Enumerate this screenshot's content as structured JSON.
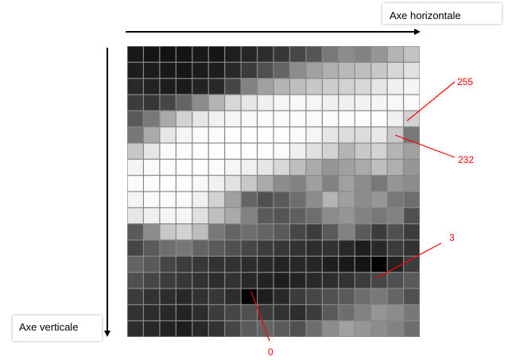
{
  "axes": {
    "horizontal_label": "Axe horizontale",
    "vertical_label": "Axe verticale"
  },
  "annotations": [
    {
      "text": "255"
    },
    {
      "text": "232"
    },
    {
      "text": "3"
    },
    {
      "text": "0"
    }
  ],
  "colors": {
    "annotation": "#ff0000",
    "axis": "#000000"
  },
  "pixel_grid": {
    "rows": 18,
    "cols": 18,
    "values": [
      [
        25,
        20,
        18,
        20,
        25,
        22,
        30,
        38,
        45,
        55,
        70,
        85,
        120,
        140,
        130,
        150,
        180,
        195
      ],
      [
        30,
        28,
        25,
        22,
        28,
        30,
        40,
        60,
        80,
        100,
        140,
        160,
        175,
        185,
        190,
        200,
        215,
        225
      ],
      [
        40,
        35,
        30,
        28,
        35,
        40,
        70,
        130,
        160,
        180,
        190,
        200,
        205,
        210,
        215,
        230,
        240,
        245
      ],
      [
        60,
        55,
        70,
        100,
        140,
        180,
        215,
        230,
        240,
        245,
        248,
        245,
        240,
        240,
        242,
        245,
        248,
        250
      ],
      [
        90,
        120,
        170,
        210,
        230,
        240,
        245,
        248,
        250,
        252,
        252,
        250,
        250,
        252,
        252,
        255,
        240,
        210
      ],
      [
        120,
        170,
        230,
        245,
        250,
        252,
        253,
        254,
        254,
        253,
        250,
        245,
        230,
        220,
        220,
        232,
        200,
        120
      ],
      [
        200,
        230,
        250,
        252,
        254,
        254,
        254,
        254,
        252,
        250,
        240,
        225,
        210,
        180,
        200,
        210,
        180,
        160
      ],
      [
        245,
        250,
        252,
        254,
        254,
        250,
        245,
        240,
        230,
        215,
        190,
        170,
        150,
        160,
        170,
        190,
        175,
        150
      ],
      [
        250,
        252,
        254,
        252,
        248,
        240,
        225,
        200,
        170,
        140,
        130,
        160,
        130,
        160,
        140,
        120,
        150,
        140
      ],
      [
        245,
        250,
        252,
        250,
        240,
        210,
        160,
        100,
        80,
        90,
        110,
        140,
        180,
        160,
        140,
        150,
        120,
        110
      ],
      [
        230,
        240,
        245,
        245,
        225,
        190,
        170,
        130,
        90,
        85,
        95,
        110,
        140,
        150,
        130,
        120,
        130,
        80
      ],
      [
        90,
        140,
        200,
        210,
        190,
        120,
        100,
        110,
        100,
        90,
        70,
        60,
        90,
        130,
        90,
        60,
        80,
        60
      ],
      [
        70,
        90,
        110,
        120,
        100,
        90,
        80,
        70,
        60,
        55,
        50,
        45,
        50,
        40,
        30,
        40,
        60,
        50
      ],
      [
        100,
        90,
        70,
        60,
        55,
        50,
        50,
        45,
        40,
        35,
        40,
        38,
        30,
        25,
        20,
        3,
        35,
        60
      ],
      [
        80,
        70,
        60,
        55,
        50,
        45,
        50,
        40,
        35,
        30,
        35,
        40,
        45,
        50,
        60,
        70,
        80,
        90
      ],
      [
        60,
        50,
        45,
        40,
        50,
        55,
        45,
        0,
        30,
        40,
        60,
        70,
        80,
        90,
        110,
        120,
        100,
        80
      ],
      [
        50,
        45,
        40,
        35,
        45,
        60,
        70,
        80,
        60,
        50,
        45,
        60,
        90,
        110,
        130,
        150,
        140,
        120
      ],
      [
        45,
        40,
        35,
        30,
        40,
        50,
        70,
        90,
        100,
        90,
        80,
        110,
        140,
        160,
        150,
        140,
        130,
        110
      ]
    ]
  }
}
